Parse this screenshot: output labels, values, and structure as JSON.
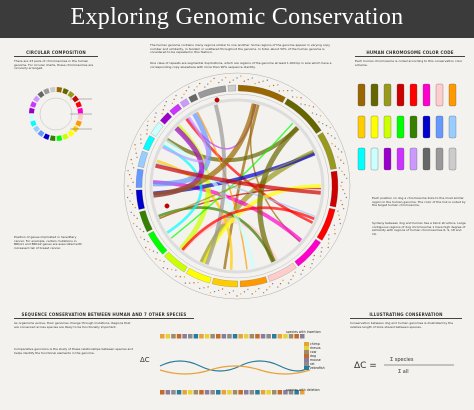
{
  "title": "Exploring Genomic Conservation",
  "sections": {
    "circular_composition": "CIRCULAR COMPOSITION",
    "chromosome_color_code": "HUMAN CHROMOSOME COLOR CODE",
    "sequence_conservation": "SEQUENCE CONSERVATION BETWEEN HUMAN AND 7 OTHER SPECIES",
    "illustrating_conservation": "ILLUSTRATING CONSERVATION"
  },
  "texts": {
    "circ_intro": "There are 23 pairs of chromosomes in the human genome. For circular charts, these chromosomes are circularly arranged.",
    "top_center": "The human genome contains many regions similar to one another. Some regions of the genome appear in varying copy number and similarity, in tandem or scattered throughout the genome. In total, about 50% of the human genome is considered to be repeated in this fashion.",
    "top_center2": "One class of repeats are segmental duplications, which are regions of the genome at least 1,000 bp in size which have a corresponding copy elsewhere with more than 90% sequence identity.",
    "left_mid": "Position of genes implicated in hereditary cancer. For example, certain mutations in BRCA1 and BRCA2 genes are associated with increased risk of breast cancer.",
    "right_top": "Each human chromosome is coded according to this conservation color scheme.",
    "right_mid": "Each position on dog a chromosome links to the most similar region in the human genome. The color of the link is coded by the target human chromosome.",
    "right_mid2": "Synteny between dog and human has a block structure. Large contiguous regions of dog chromosome 1 have high degree of similarity with regions of human chromosomes 6, 9, 18 and 19.",
    "bottom_left": "As organisms evolve, their genomes change through mutations. Regions that are conserved across species are likely to be functionally important.",
    "bottom_left2": "Comparative genomics is the study of these relationships between species and helps identify the functional elements in the genome.",
    "bottom_right": "Conservation between dog and human genomes is illustrated by the relative length of links shared between species."
  },
  "species_legend": [
    {
      "name": "chimp",
      "color": "#e8a23a"
    },
    {
      "name": "rhesus",
      "color": "#e8d13a"
    },
    {
      "name": "cow",
      "color": "#9c8c6c"
    },
    {
      "name": "dog",
      "color": "#c46a2a"
    },
    {
      "name": "mouse",
      "color": "#8a7c9c"
    },
    {
      "name": "rat",
      "color": "#8c8c8c"
    },
    {
      "name": "zebrafish",
      "color": "#2a7c9c"
    }
  ],
  "chrom_colors": [
    "#996600",
    "#666600",
    "#99991e",
    "#cc0000",
    "#ff0000",
    "#ff00cc",
    "#ffcccc",
    "#ff9900",
    "#ffcc00",
    "#ffff00",
    "#ccff00",
    "#00ff00",
    "#358000",
    "#0000cc",
    "#6699ff",
    "#99ccff",
    "#00ffff",
    "#ccffff",
    "#9900cc",
    "#cc33ff",
    "#cc99ff",
    "#666666",
    "#999999",
    "#cccccc"
  ],
  "annotations": {
    "species_with_deletion": "species with deletion",
    "species_with_insertion": "species with insertion",
    "formula_label": "ΔC"
  }
}
